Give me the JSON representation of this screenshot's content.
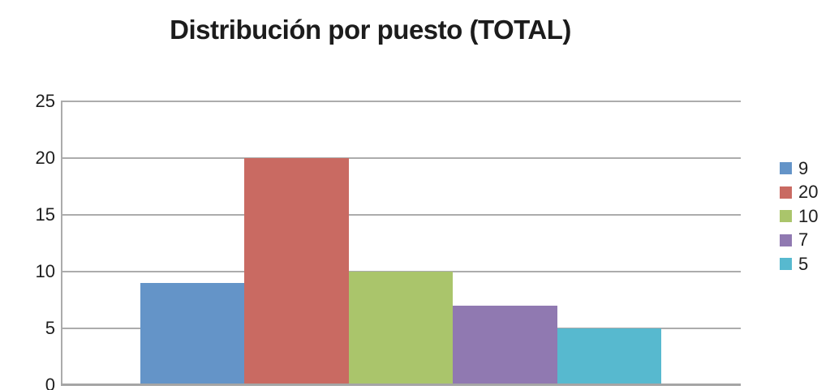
{
  "title": "Distribución por puesto (TOTAL)",
  "chart_data": {
    "type": "bar",
    "title": "Distribución por puesto (TOTAL)",
    "series": [
      {
        "name": "9",
        "value": 9,
        "color": "#6494C8"
      },
      {
        "name": "20",
        "value": 20,
        "color": "#C96A62"
      },
      {
        "name": "10",
        "value": 10,
        "color": "#AAC56B"
      },
      {
        "name": "7",
        "value": 7,
        "color": "#9079B1"
      },
      {
        "name": "5",
        "value": 5,
        "color": "#57B9CF"
      }
    ],
    "xlabel": "",
    "ylabel": "",
    "ylim": [
      0,
      25
    ],
    "yticks": [
      0,
      5,
      10,
      15,
      20,
      25
    ],
    "grid": true,
    "legend_position": "right",
    "legend_labels": [
      "9",
      "20",
      "10",
      "7",
      "5"
    ]
  },
  "colors": {
    "gridline": "#ACACAC",
    "axis": "#A5A5A5",
    "text": "#1E1E1E",
    "title_text": "#1C1C1C",
    "background": "#FFFFFF"
  }
}
